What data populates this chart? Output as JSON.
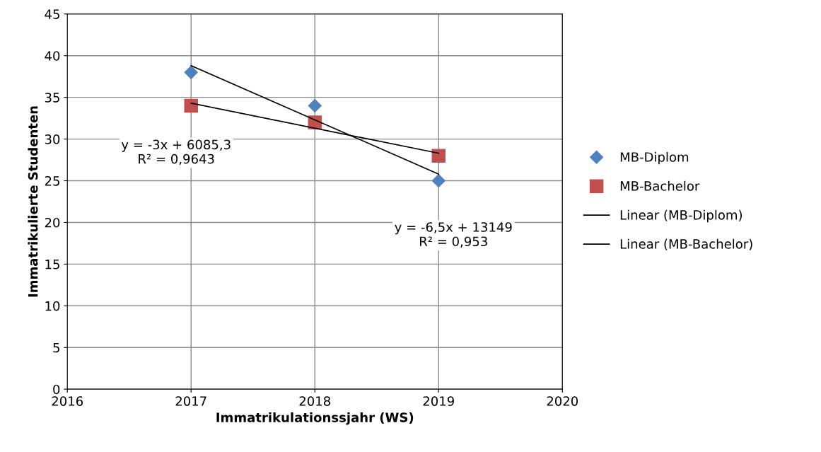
{
  "chart_data": {
    "type": "scatter",
    "xlabel": "Immatrikulationssjahr (WS)",
    "ylabel": "Immatrikulierte Studenten",
    "xlim": [
      2016,
      2020
    ],
    "xticks": [
      2016,
      2017,
      2018,
      2019,
      2020
    ],
    "ylim": [
      0,
      45
    ],
    "yticks": [
      0,
      5,
      10,
      15,
      20,
      25,
      30,
      35,
      40,
      45
    ],
    "grid": true,
    "legend": "right",
    "series": [
      {
        "name": "MB-Diplom",
        "color": "#4f81bd",
        "marker": "diamond",
        "x": [
          2017,
          2018,
          2019
        ],
        "values": [
          38,
          34,
          25
        ]
      },
      {
        "name": "MB-Bachelor",
        "color": "#c0504d",
        "marker": "square",
        "x": [
          2017,
          2018,
          2019
        ],
        "values": [
          34,
          32,
          28
        ]
      },
      {
        "name": "Linear (MB-Diplom)",
        "type": "line",
        "color": "#000000",
        "marker": "none",
        "line_style": "solid",
        "x": [
          2017,
          2019
        ],
        "values": [
          38.8,
          25.8
        ]
      },
      {
        "name": "Linear (MB-Bachelor)",
        "type": "line",
        "color": "#000000",
        "marker": "none",
        "line_style": "solid",
        "x": [
          2017,
          2019
        ],
        "values": [
          34.3,
          28.3
        ]
      }
    ],
    "annotations": [
      "y = -3x + 6085,3\nR² = 0,9643",
      "y = -6,5x + 13149\nR² = 0,953"
    ]
  }
}
